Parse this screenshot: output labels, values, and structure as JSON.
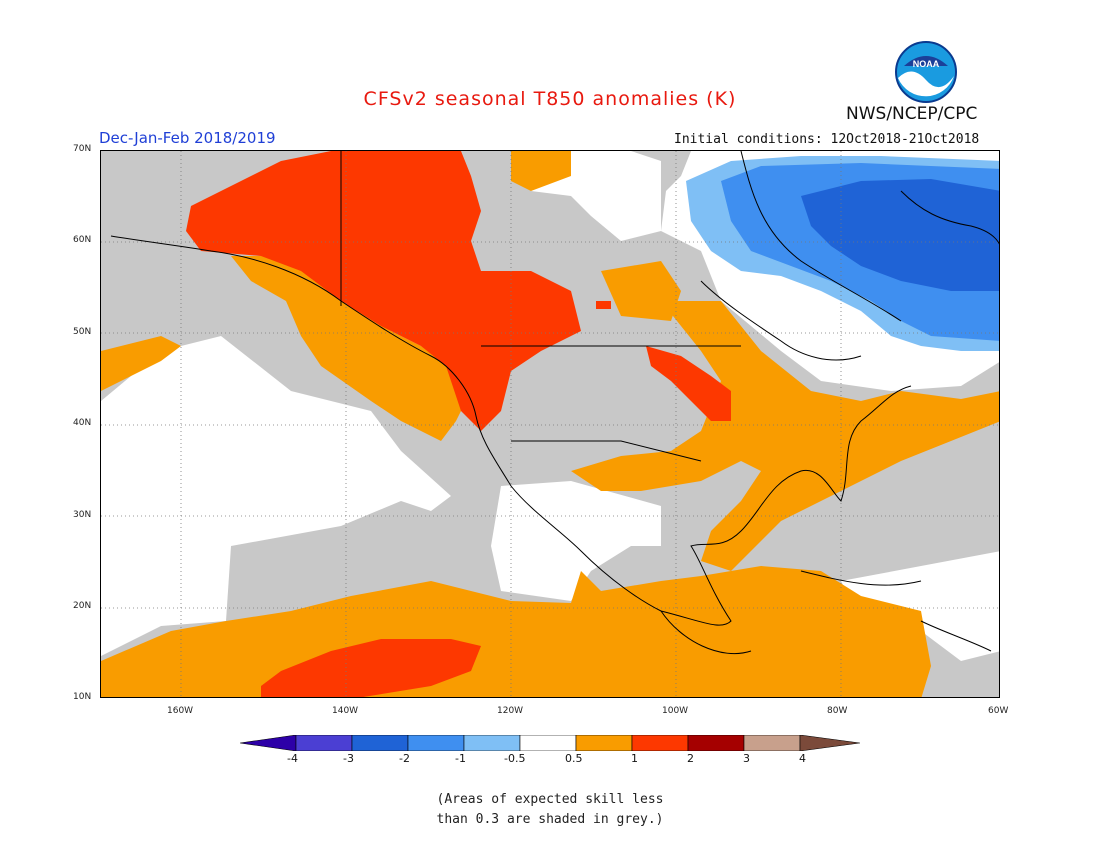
{
  "header": {
    "title": "CFSv2 seasonal T850 anomalies (K)",
    "org": "NWS/NCEP/CPC",
    "period": "Dec-Jan-Feb 2018/2019",
    "initial_conditions": "Initial conditions: 12Oct2018-21Oct2018",
    "logo_text": "NOAA"
  },
  "map": {
    "lat_labels": [
      "70N",
      "60N",
      "50N",
      "40N",
      "30N",
      "20N",
      "10N"
    ],
    "lon_labels": [
      "160W",
      "140W",
      "120W",
      "100W",
      "80W",
      "60W"
    ]
  },
  "legend": {
    "ticks": [
      "-4",
      "-3",
      "-2",
      "-1",
      "-0.5",
      "0.5",
      "1",
      "2",
      "3",
      "4"
    ],
    "colors": [
      "#2d00a8",
      "#4b3fd3",
      "#1f63d6",
      "#3f8ff0",
      "#7fbff5",
      "#ffffff",
      "#f99c00",
      "#fd3800",
      "#a50000",
      "#c8a08c",
      "#7b4a3a"
    ],
    "no_skill_color": "#c8c8c8"
  },
  "footnote": {
    "line1": "(Areas of expected skill less",
    "line2": "than 0.3 are shaded in grey.)"
  }
}
